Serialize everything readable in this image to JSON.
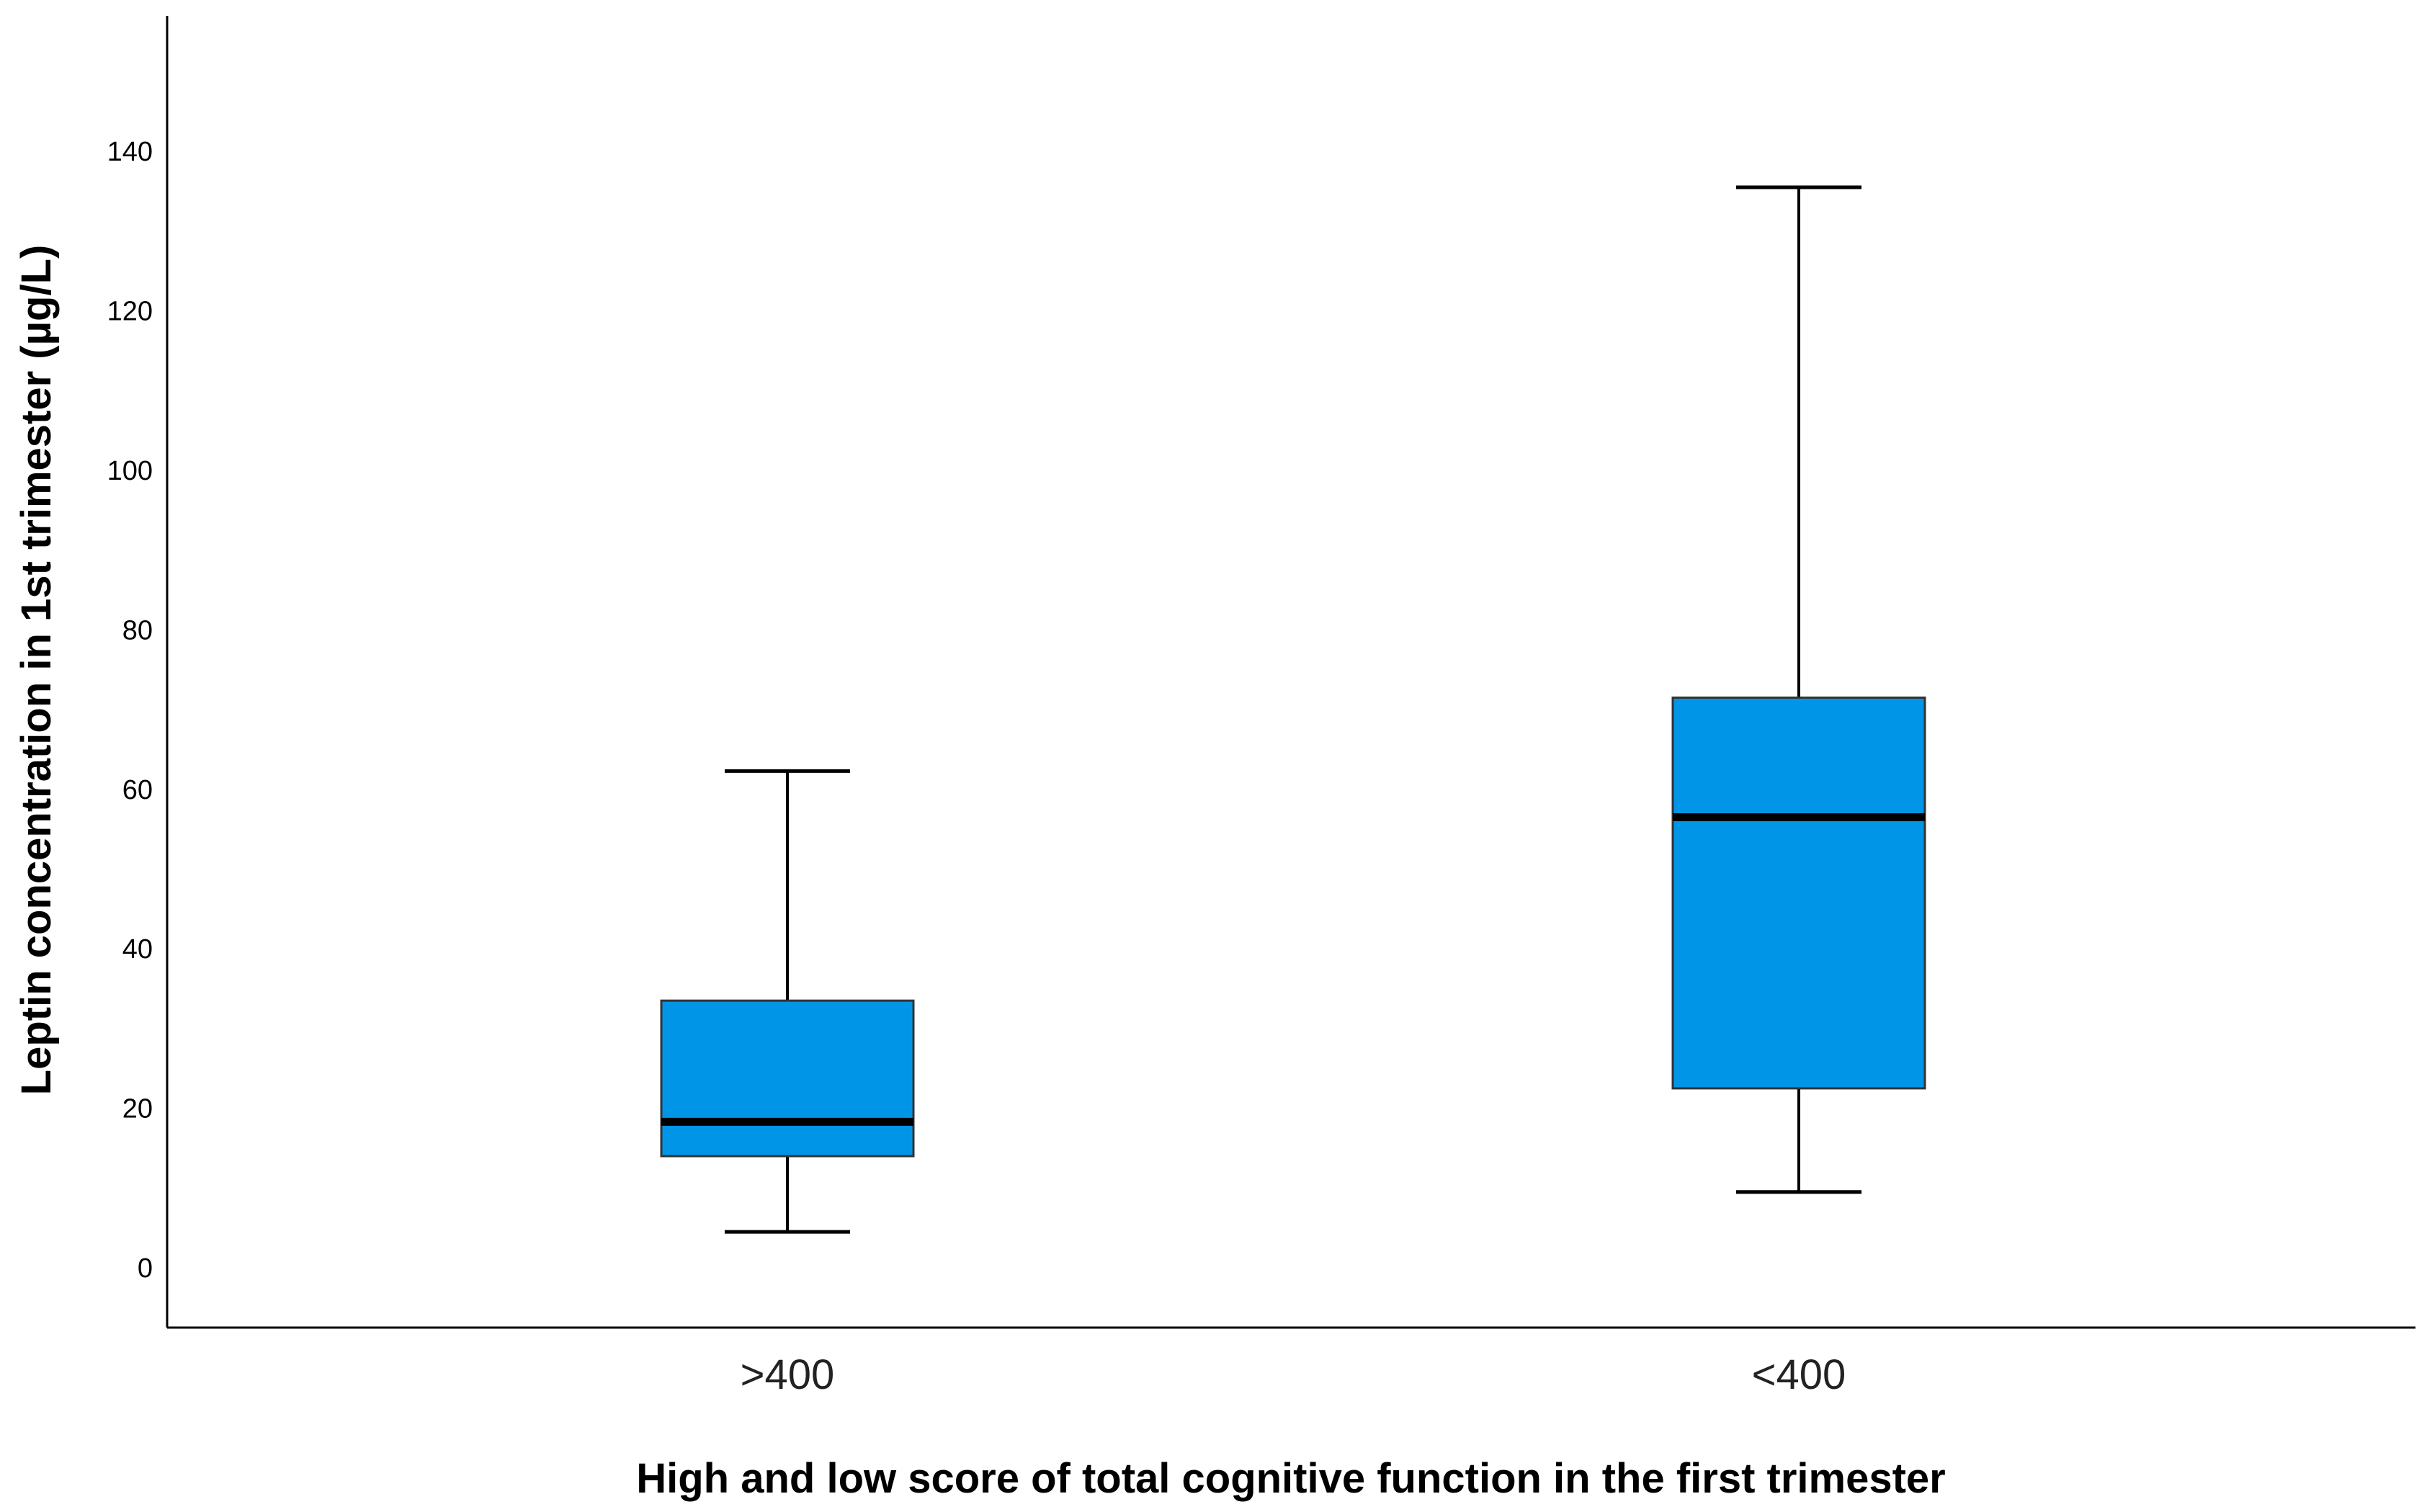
{
  "chart_data": {
    "type": "box",
    "title": "",
    "xlabel": "High and low score of total cognitive function in the first trimester",
    "ylabel": "Leptin concentration in 1st trimester (µg/L)",
    "ylim": [
      -7.5,
      157
    ],
    "yticks": [
      0,
      20,
      40,
      60,
      80,
      100,
      120,
      140
    ],
    "ytick_labels": [
      "0",
      "20",
      "40",
      "60",
      "80",
      "100",
      "120",
      "140"
    ],
    "grid": false,
    "categories": [
      ">400",
      "<400"
    ],
    "boxes": [
      {
        "category": ">400",
        "whisker_low": 4.5,
        "q1": 14,
        "median": 18.3,
        "q3": 33.5,
        "whisker_high": 62.3
      },
      {
        "category": "<400",
        "whisker_low": 9.5,
        "q1": 22.5,
        "median": 56.5,
        "q3": 71.5,
        "whisker_high": 135.5
      }
    ],
    "box_color": "#0095E6",
    "median_color": "#000000"
  }
}
